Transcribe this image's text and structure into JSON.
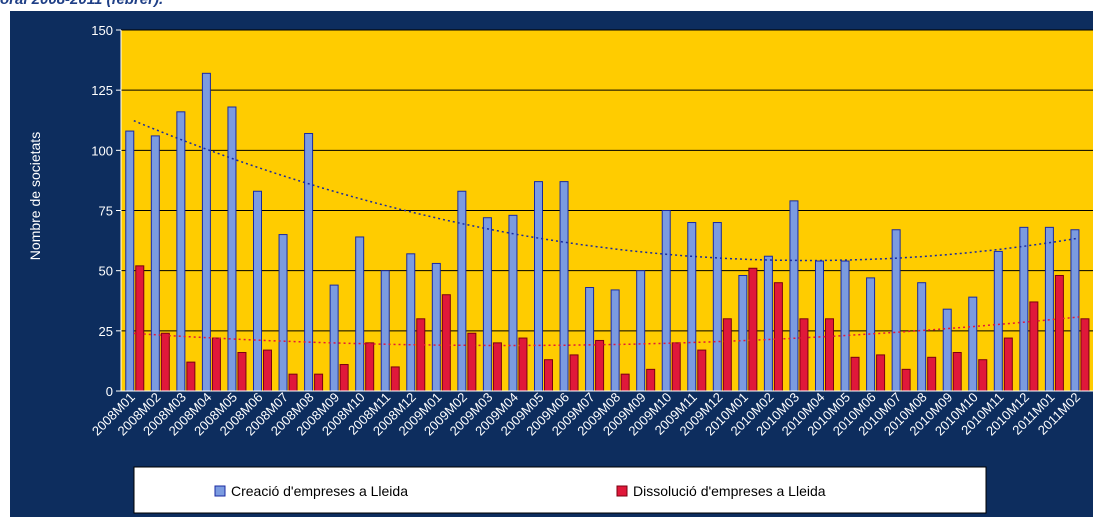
{
  "header": {
    "title_fragment": "oral 2008-2011 (febrer)."
  },
  "chart_data": {
    "type": "bar",
    "title": "",
    "xlabel": "",
    "ylabel": "Nombre de societats",
    "ylim": [
      0,
      150
    ],
    "yticks": [
      0,
      25,
      50,
      75,
      100,
      125,
      150
    ],
    "grid": true,
    "legend_position": "bottom",
    "trendlines": "dotted polynomial trend per series",
    "categories": [
      "2008M01",
      "2008M02",
      "2008M03",
      "2008M04",
      "2008M05",
      "2008M06",
      "2008M07",
      "2008M08",
      "2008M09",
      "2008M10",
      "2008M11",
      "2008M12",
      "2009M01",
      "2009M02",
      "2009M03",
      "2009M04",
      "2009M05",
      "2009M06",
      "2009M07",
      "2009M08",
      "2009M09",
      "2009M10",
      "2009M11",
      "2009M12",
      "2010M01",
      "2010M02",
      "2010M03",
      "2010M04",
      "2010M05",
      "2010M06",
      "2010M07",
      "2010M08",
      "2010M09",
      "2010M10",
      "2010M11",
      "2010M12",
      "2011M01",
      "2011M02"
    ],
    "series": [
      {
        "name": "Creació d'empreses a Lleida",
        "color": "#7b9be0",
        "values": [
          108,
          106,
          116,
          132,
          118,
          83,
          65,
          107,
          44,
          64,
          50,
          57,
          53,
          83,
          72,
          73,
          87,
          87,
          43,
          42,
          50,
          75,
          70,
          70,
          48,
          56,
          79,
          54,
          54,
          47,
          67,
          45,
          34,
          39,
          58,
          68,
          68,
          67
        ]
      },
      {
        "name": "Dissolució d'empreses a Lleida",
        "color": "#e0183a",
        "values": [
          52,
          24,
          12,
          22,
          16,
          17,
          7,
          7,
          11,
          20,
          10,
          30,
          40,
          24,
          20,
          22,
          13,
          15,
          21,
          7,
          9,
          20,
          17,
          30,
          51,
          45,
          30,
          30,
          14,
          15,
          9,
          14,
          16,
          13,
          22,
          37,
          48,
          30
        ]
      }
    ],
    "colors": {
      "outer_bg": "#0d2d5e",
      "plot_bg": "#ffcc00",
      "grid": "#000000",
      "trend_creacio": "#1a2aa0",
      "trend_dissolucio": "#e0183a"
    }
  }
}
